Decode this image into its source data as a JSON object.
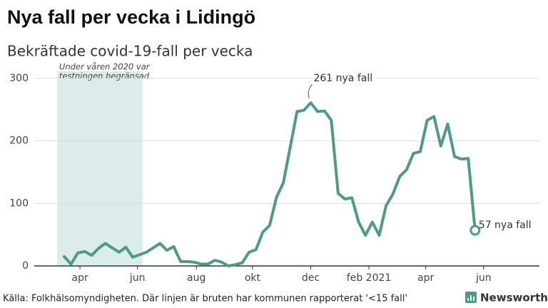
{
  "chart_data": {
    "type": "line",
    "title": "Nya fall per vecka i Lidingö",
    "subtitle": "Bekräftade covid-19-fall per vecka",
    "source": "Källa: Folkhälsomyndigheten. Där linjen är bruten har kommunen rapporterat '<15 fall'",
    "brand": "Newsworthy",
    "color": "#4e9a88",
    "x": [
      0,
      1,
      2,
      3,
      4,
      5,
      6,
      7,
      8,
      9,
      10,
      11,
      12,
      13,
      14,
      15,
      16,
      17,
      18,
      19,
      20,
      21,
      22,
      23,
      24,
      25,
      26,
      27,
      28,
      29,
      30,
      31,
      32,
      33,
      34,
      35,
      36,
      37,
      38,
      39,
      40,
      41,
      42,
      43,
      44,
      45,
      46,
      47,
      48,
      49,
      50,
      51,
      52,
      53,
      54,
      55,
      56,
      57,
      58,
      59,
      60
    ],
    "values": [
      15,
      3,
      21,
      23,
      17,
      28,
      36,
      29,
      22,
      30,
      14,
      18,
      22,
      29,
      36,
      25,
      31,
      7,
      7,
      6,
      3,
      3,
      9,
      6,
      0,
      2,
      5,
      22,
      26,
      54,
      65,
      110,
      133,
      190,
      247,
      249,
      261,
      247,
      248,
      233,
      116,
      107,
      109,
      70,
      49,
      70,
      49,
      96,
      115,
      143,
      154,
      180,
      183,
      233,
      239,
      192,
      227,
      175,
      171,
      172,
      57
    ],
    "xlim": [
      -2.5,
      69.4
    ],
    "xticks": [
      {
        "value": 2.3,
        "label": "apr"
      },
      {
        "value": 10.7,
        "label": "jun"
      },
      {
        "value": 19.3,
        "label": "aug"
      },
      {
        "value": 27.5,
        "label": "okt"
      },
      {
        "value": 36,
        "label": "dec"
      },
      {
        "value": 44.5,
        "label": "feb 2021"
      },
      {
        "value": 52.8,
        "label": "apr"
      },
      {
        "value": 61.25,
        "label": "jun"
      }
    ],
    "ylim": [
      0,
      300
    ],
    "yticks": [
      0,
      100,
      200,
      300
    ],
    "grid": true,
    "shaded_region": {
      "x": [
        -1.05,
        11.45
      ],
      "label": [
        "Under våren 2020 var",
        "testningen begränsad"
      ]
    },
    "annotations": [
      {
        "text": "261 nya fall",
        "x": 36,
        "y": 261
      },
      {
        "text": "57 nya fall",
        "x": 60,
        "y": 57
      }
    ]
  }
}
